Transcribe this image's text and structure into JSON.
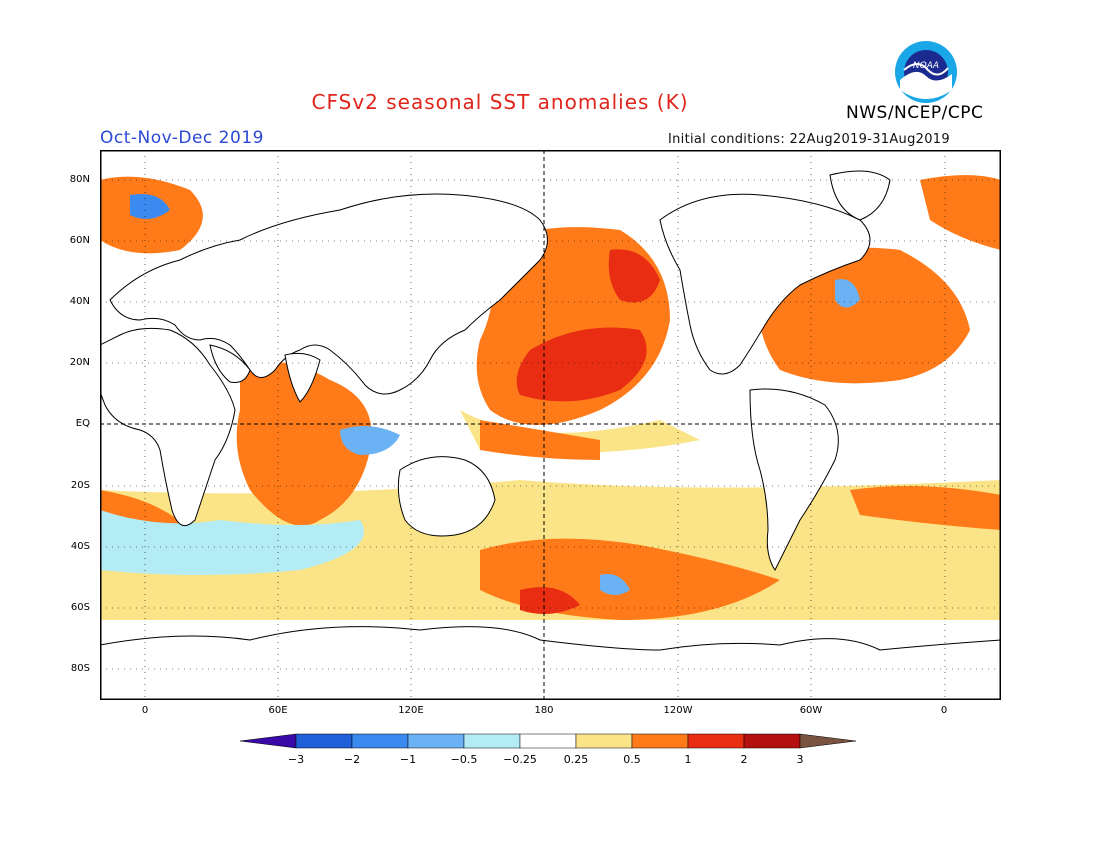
{
  "header": {
    "title": "CFSv2 seasonal SST anomalies (K)",
    "agency": "NWS/NCEP/CPC",
    "season": "Oct-Nov-Dec 2019",
    "initial_conditions": "Initial conditions: 22Aug2019-31Aug2019",
    "logo_text": "NOAA"
  },
  "axes": {
    "lat_labels": [
      "80N",
      "60N",
      "40N",
      "20N",
      "EQ",
      "20S",
      "40S",
      "60S",
      "80S"
    ],
    "lon_labels": [
      "0",
      "60E",
      "120E",
      "180",
      "120W",
      "60W",
      "0"
    ]
  },
  "colorbar": {
    "tick_labels": [
      "-3",
      "-2",
      "-1",
      "-0.5",
      "-0.25",
      "0.25",
      "0.5",
      "1",
      "2",
      "3"
    ],
    "colors": [
      "#3a0aa8",
      "#1f5fd8",
      "#3b8af0",
      "#6bb2f5",
      "#b3ecf5",
      "#ffffff",
      "#fbe487",
      "#ff7b1a",
      "#e82d12",
      "#b3100f",
      "#7a5240"
    ]
  },
  "palette": {
    "land": "#ffffff",
    "light_warm": "#fbe487",
    "warm": "#ff7b1a",
    "hot": "#e82d12",
    "very_hot": "#b3100f",
    "light_cool": "#b3ecf5",
    "cool": "#6bb2f5",
    "cold": "#3b8af0"
  }
}
